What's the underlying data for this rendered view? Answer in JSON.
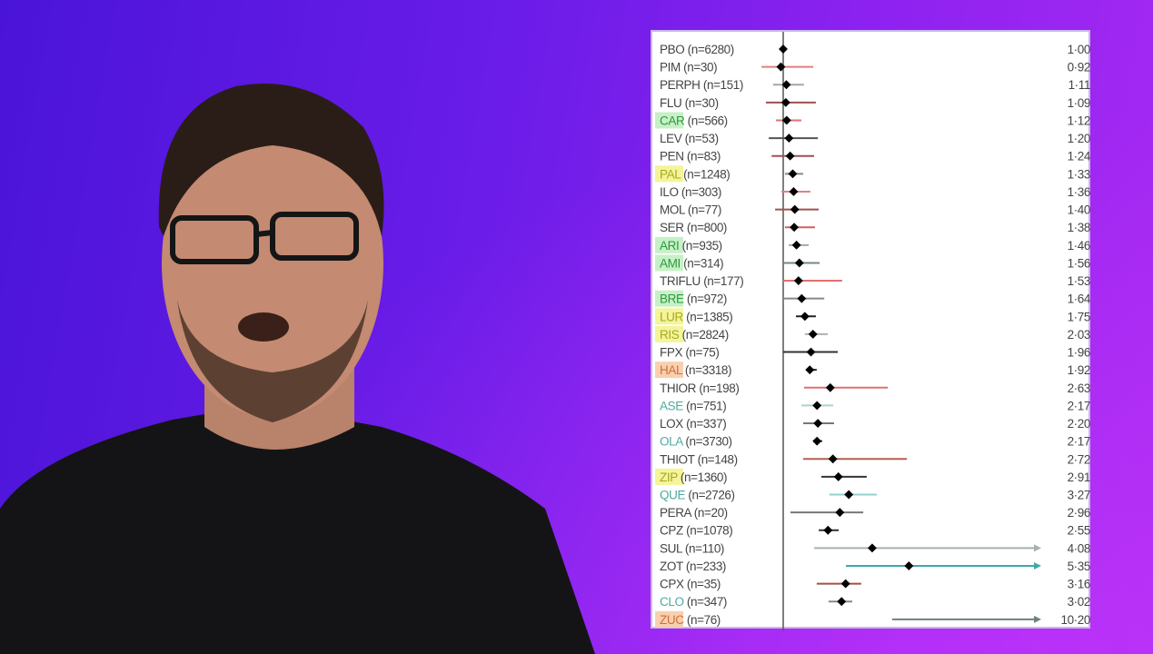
{
  "chart_data": {
    "type": "forest",
    "title": "",
    "xlabel": "",
    "reference_line": 1,
    "xlim": [
      0.5,
      9.75
    ],
    "grid": false,
    "rows": [
      {
        "label": "PBO (n=6280)",
        "estimate": 1.0,
        "value_text": "1·00",
        "ci": null,
        "color": "#000000",
        "highlight": null,
        "text_color": "#444444"
      },
      {
        "label": "PIM (n=30)",
        "estimate": 0.92,
        "value_text": "0·92",
        "ci": [
          0.25,
          2.04
        ],
        "color": "#e08080",
        "highlight": null,
        "text_color": "#444444"
      },
      {
        "label": "PERPH (n=151)",
        "estimate": 1.11,
        "value_text": "1·11",
        "ci": [
          0.65,
          1.72
        ],
        "color": "#a0a8a8",
        "highlight": null,
        "text_color": "#444444"
      },
      {
        "label": "FLU (n=30)",
        "estimate": 1.09,
        "value_text": "1·09",
        "ci": [
          0.4,
          2.13
        ],
        "color": "#a05050",
        "highlight": null,
        "text_color": "#444444"
      },
      {
        "label": "CAR (n=566)",
        "estimate": 1.12,
        "value_text": "1·12",
        "ci": [
          0.75,
          1.63
        ],
        "color": "#e07070",
        "highlight": "#c8f0c8",
        "text_color": "#2a9a3a"
      },
      {
        "label": "LEV (n=53)",
        "estimate": 1.2,
        "value_text": "1·20",
        "ci": [
          0.5,
          2.2
        ],
        "color": "#555555",
        "highlight": null,
        "text_color": "#444444"
      },
      {
        "label": "PEN (n=83)",
        "estimate": 1.24,
        "value_text": "1·24",
        "ci": [
          0.6,
          2.07
        ],
        "color": "#a05050",
        "highlight": null,
        "text_color": "#444444"
      },
      {
        "label": "PAL (n=1248)",
        "estimate": 1.33,
        "value_text": "1·33",
        "ci": [
          1.06,
          1.69
        ],
        "color": "#888888",
        "highlight": "#f4f49a",
        "text_color": "#a8a820"
      },
      {
        "label": "ILO (n=303)",
        "estimate": 1.36,
        "value_text": "1·36",
        "ci": [
          0.94,
          1.94
        ],
        "color": "#e08080",
        "highlight": null,
        "text_color": "#444444"
      },
      {
        "label": "MOL (n=77)",
        "estimate": 1.4,
        "value_text": "1·40",
        "ci": [
          0.72,
          2.23
        ],
        "color": "#a05050",
        "highlight": null,
        "text_color": "#444444"
      },
      {
        "label": "SER (n=800)",
        "estimate": 1.38,
        "value_text": "1·38",
        "ci": [
          1.06,
          2.1
        ],
        "color": "#d06060",
        "highlight": null,
        "text_color": "#444444"
      },
      {
        "label": "ARI (n=935)",
        "estimate": 1.46,
        "value_text": "1·46",
        "ci": [
          1.19,
          1.88
        ],
        "color": "#a0a8a8",
        "highlight": "#c8f0c8",
        "text_color": "#2a9a3a"
      },
      {
        "label": "AMI (n=314)",
        "estimate": 1.56,
        "value_text": "1·56",
        "ci": [
          1.0,
          2.26
        ],
        "color": "#708888",
        "highlight": "#c8f0c8",
        "text_color": "#2a9a3a"
      },
      {
        "label": "TRIFLU (n=177)",
        "estimate": 1.53,
        "value_text": "1·53",
        "ci": [
          1.0,
          3.04
        ],
        "color": "#e07070",
        "highlight": null,
        "text_color": "#444444"
      },
      {
        "label": "BRE (n=972)",
        "estimate": 1.64,
        "value_text": "1·64",
        "ci": [
          1.0,
          2.42
        ],
        "color": "#888888",
        "highlight": "#c8f0c8",
        "text_color": "#2a9a3a"
      },
      {
        "label": "LUR (n=1385)",
        "estimate": 1.75,
        "value_text": "1·75",
        "ci": [
          1.44,
          2.13
        ],
        "color": "#222222",
        "highlight": "#f4f49a",
        "text_color": "#a8a820"
      },
      {
        "label": "RIS (n=2824)",
        "estimate": 2.03,
        "value_text": "2·03",
        "ci": [
          1.75,
          2.54
        ],
        "color": "#b0b0b0",
        "highlight": "#f4f49a",
        "text_color": "#a8a820"
      },
      {
        "label": "FPX (n=75)",
        "estimate": 1.96,
        "value_text": "1·96",
        "ci": [
          1.0,
          2.89
        ],
        "color": "#333333",
        "highlight": null,
        "text_color": "#444444"
      },
      {
        "label": "HAL (n=3318)",
        "estimate": 1.92,
        "value_text": "1·92",
        "ci": [
          1.79,
          2.16
        ],
        "color": "#222222",
        "highlight": "#f8d0b0",
        "text_color": "#d07030"
      },
      {
        "label": "THIOR (n=198)",
        "estimate": 2.63,
        "value_text": "2·63",
        "ci": [
          1.72,
          4.62
        ],
        "color": "#e07070",
        "highlight": null,
        "text_color": "#444444"
      },
      {
        "label": "ASE (n=751)",
        "estimate": 2.17,
        "value_text": "2·17",
        "ci": [
          1.63,
          2.73
        ],
        "color": "#b0d0d0",
        "highlight": null,
        "text_color": "#50a8a0"
      },
      {
        "label": "LOX (n=337)",
        "estimate": 2.2,
        "value_text": "2·20",
        "ci": [
          1.69,
          2.76
        ],
        "color": "#777777",
        "highlight": null,
        "text_color": "#444444"
      },
      {
        "label": "OLA (n=3730)",
        "estimate": 2.17,
        "value_text": "2·17",
        "ci": [
          2.04,
          2.35
        ],
        "color": "#222222",
        "highlight": null,
        "text_color": "#50a8a0"
      },
      {
        "label": "THIOT (n=148)",
        "estimate": 2.72,
        "value_text": "2·72",
        "ci": [
          1.69,
          5.28
        ],
        "color": "#b06050",
        "highlight": null,
        "text_color": "#444444"
      },
      {
        "label": "ZIP (n=1360)",
        "estimate": 2.91,
        "value_text": "2·91",
        "ci": [
          2.32,
          3.89
        ],
        "color": "#333333",
        "highlight": "#f4f49a",
        "text_color": "#a8a820"
      },
      {
        "label": "QUE (n=2726)",
        "estimate": 3.27,
        "value_text": "3·27",
        "ci": [
          2.6,
          4.24
        ],
        "color": "#90d0d0",
        "highlight": null,
        "text_color": "#50a8a0"
      },
      {
        "label": "PERA (n=20)",
        "estimate": 2.96,
        "value_text": "2·96",
        "ci": [
          1.25,
          3.77
        ],
        "color": "#777777",
        "highlight": null,
        "text_color": "#444444"
      },
      {
        "label": "CPZ (n=1078)",
        "estimate": 2.55,
        "value_text": "2·55",
        "ci": [
          2.23,
          2.92
        ],
        "color": "#333333",
        "highlight": null,
        "text_color": "#444444"
      },
      {
        "label": "SUL (n=110)",
        "estimate": 4.08,
        "value_text": "4·08",
        "ci": [
          2.07,
          null
        ],
        "color": "#a8b0b0",
        "highlight": null,
        "text_color": "#444444"
      },
      {
        "label": "ZOT (n=233)",
        "estimate": 5.35,
        "value_text": "5·35",
        "ci": [
          3.17,
          null
        ],
        "color": "#40a8a8",
        "highlight": null,
        "text_color": "#444444"
      },
      {
        "label": "CPX (n=35)",
        "estimate": 3.16,
        "value_text": "3·16",
        "ci": [
          2.16,
          3.7
        ],
        "color": "#a05040",
        "highlight": null,
        "text_color": "#444444"
      },
      {
        "label": "CLO (n=347)",
        "estimate": 3.02,
        "value_text": "3·02",
        "ci": [
          2.57,
          3.39
        ],
        "color": "#888888",
        "highlight": null,
        "text_color": "#50a8a0"
      },
      {
        "label": "ZUC (n=76)",
        "estimate": 10.2,
        "value_text": "10·20",
        "ci": [
          4.77,
          null
        ],
        "color": "#708080",
        "highlight": "#f8d0b0",
        "text_color": "#d07030"
      }
    ]
  }
}
